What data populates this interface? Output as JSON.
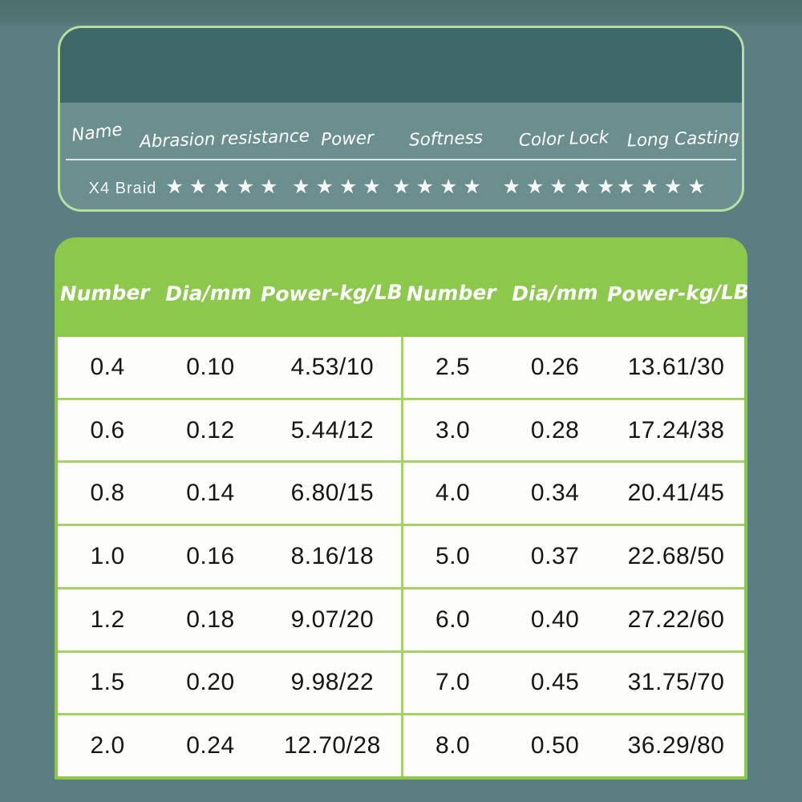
{
  "page": {
    "background_color": "#5b7e82",
    "accent_green": "#8cc84b",
    "card_border_green": "#b7dda0",
    "grid_line_green": "#a5d36a",
    "dark_band_teal": "#3f686b",
    "card_panel_teal": "#6b8e8f"
  },
  "ratings_card": {
    "product_name": "X4 Braid",
    "star_char": "★",
    "columns": [
      {
        "label": "Name"
      },
      {
        "label": "Abrasion resistance",
        "stars": 5
      },
      {
        "label": "Power",
        "stars": 4
      },
      {
        "label": "Softness",
        "stars": 4
      },
      {
        "label": "Color Lock",
        "stars": 5
      },
      {
        "label": "Long Casting",
        "stars": 4
      }
    ]
  },
  "spec_table": {
    "headers": [
      "Number",
      "Dia/mm",
      "Power-kg/LB",
      "Number",
      "Dia/mm",
      "Power-kg/LB"
    ],
    "rows": [
      [
        "0.4",
        "0.10",
        "4.53/10",
        "2.5",
        "0.26",
        "13.61/30"
      ],
      [
        "0.6",
        "0.12",
        "5.44/12",
        "3.0",
        "0.28",
        "17.24/38"
      ],
      [
        "0.8",
        "0.14",
        "6.80/15",
        "4.0",
        "0.34",
        "20.41/45"
      ],
      [
        "1.0",
        "0.16",
        "8.16/18",
        "5.0",
        "0.37",
        "22.68/50"
      ],
      [
        "1.2",
        "0.18",
        "9.07/20",
        "6.0",
        "0.40",
        "27.22/60"
      ],
      [
        "1.5",
        "0.20",
        "9.98/22",
        "7.0",
        "0.45",
        "31.75/70"
      ],
      [
        "2.0",
        "0.24",
        "12.70/28",
        "8.0",
        "0.50",
        "36.29/80"
      ]
    ]
  }
}
